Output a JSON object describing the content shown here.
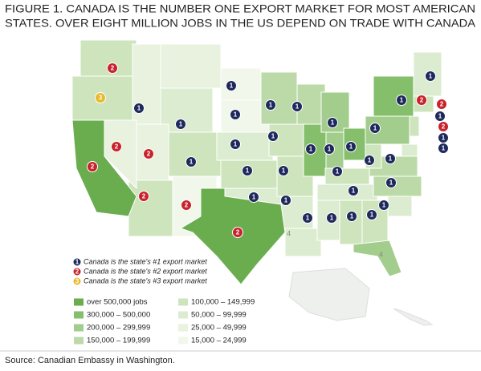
{
  "header": {
    "title_lines": [
      "FIGURE 1. CANADA IS THE NUMBER ONE EXPORT MARKET FOR MOST AMERICAN",
      "STATES. OVER EIGHT MILLION JOBS IN THE US DEPEND ON TRADE WITH CANADA"
    ]
  },
  "map": {
    "badges": [
      2,
      3,
      1,
      1,
      1,
      1,
      2,
      2,
      1,
      1,
      2,
      2,
      2,
      2,
      1,
      1,
      1,
      1,
      1,
      1,
      1,
      1,
      1,
      1,
      1,
      1,
      1,
      1,
      1,
      1,
      1,
      1,
      1,
      1,
      1,
      1,
      1,
      1,
      2,
      2,
      1,
      2,
      1,
      1
    ],
    "region_labels": [
      "4",
      "4"
    ],
    "rank_legend": [
      {
        "rank": "1",
        "label": "Canada is the state's #1 export market",
        "color": "#1f2a5c"
      },
      {
        "rank": "2",
        "label": "Canada is the state's #2 export market",
        "color": "#c8232c"
      },
      {
        "rank": "3",
        "label": "Canada is the state's #3 export market",
        "color": "#e8b92a"
      }
    ],
    "tiers": [
      {
        "label": "over 500,000 jobs",
        "color": "#6aad4f"
      },
      {
        "label": "300,000 – 500,000",
        "color": "#86bf6b"
      },
      {
        "label": "200,000 – 299,999",
        "color": "#a3cd8c"
      },
      {
        "label": "150,000 – 199,999",
        "color": "#bcdaa8"
      },
      {
        "label": "100,000 – 149,999",
        "color": "#cde4bc"
      },
      {
        "label": "50,000 – 99,999",
        "color": "#dcecd0"
      },
      {
        "label": "25,000 – 49,999",
        "color": "#e8f2de"
      },
      {
        "label": "15,000 – 24,999",
        "color": "#f1f7ea"
      }
    ]
  },
  "footer": {
    "source": "Source: Canadian Embassy in Washington."
  }
}
